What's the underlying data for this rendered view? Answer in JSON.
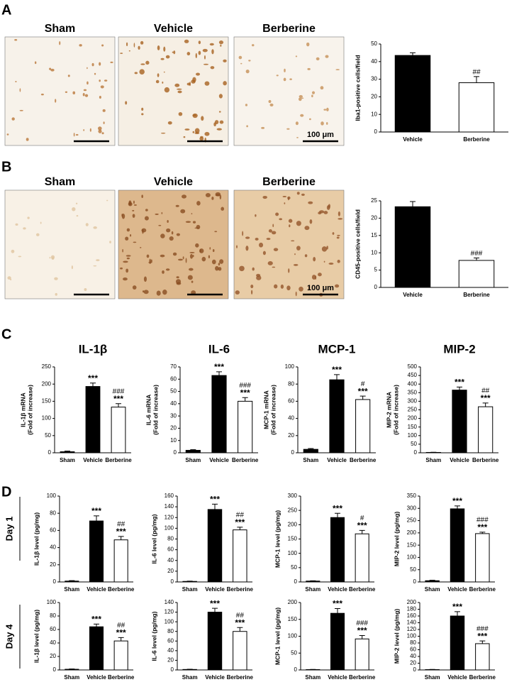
{
  "panel_labels": [
    "A",
    "B",
    "C",
    "D"
  ],
  "image_titles": [
    "Sham",
    "Vehicle",
    "Berberine"
  ],
  "scale_bar_label": "100 μm",
  "row_labels": [
    "Day 1",
    "Day 4"
  ],
  "chart_data": [
    {
      "type": "bar",
      "ylabel": "Iba1-positive cells/field",
      "categories": [
        "Vehicle",
        "Berberine"
      ],
      "values": [
        43.5,
        28
      ],
      "errors": [
        1.5,
        3.5
      ],
      "colors": [
        "#000000",
        "#ffffff"
      ],
      "markers": [
        null,
        [
          "##"
        ]
      ],
      "ylim": [
        0,
        50
      ],
      "yticks": [
        0,
        10,
        20,
        30,
        40,
        50
      ]
    },
    {
      "type": "bar",
      "ylabel": "CD45-positive cells/field",
      "categories": [
        "Vehicle",
        "Berberine"
      ],
      "values": [
        23.3,
        7.8
      ],
      "errors": [
        1.5,
        0.7
      ],
      "colors": [
        "#000000",
        "#ffffff"
      ],
      "markers": [
        null,
        [
          "###"
        ]
      ],
      "ylim": [
        0,
        25
      ],
      "yticks": [
        0,
        5,
        10,
        15,
        20,
        25
      ]
    },
    {
      "type": "bar",
      "title": "IL-1β",
      "ylabel": [
        "IL-1β mRNA",
        "(Fold of increase)"
      ],
      "categories": [
        "Sham",
        "Vehicle",
        "Berberine"
      ],
      "values": [
        3,
        193,
        133
      ],
      "errors": [
        2,
        10,
        10
      ],
      "colors": [
        "#000000",
        "#000000",
        "#ffffff"
      ],
      "markers": [
        null,
        [
          "***"
        ],
        [
          "###",
          "***"
        ]
      ],
      "ylim": [
        0,
        250
      ],
      "yticks": [
        0,
        50,
        100,
        150,
        200,
        250
      ]
    },
    {
      "type": "bar",
      "title": "IL-6",
      "ylabel": [
        "IL-6 mRNA",
        "(Fold of increase)"
      ],
      "categories": [
        "Sham",
        "Vehicle",
        "Berberine"
      ],
      "values": [
        2,
        63,
        42
      ],
      "errors": [
        0.5,
        3,
        3
      ],
      "colors": [
        "#000000",
        "#000000",
        "#ffffff"
      ],
      "markers": [
        null,
        [
          "***"
        ],
        [
          "###",
          "***"
        ]
      ],
      "ylim": [
        0,
        70
      ],
      "yticks": [
        0,
        10,
        20,
        30,
        40,
        50,
        60,
        70
      ]
    },
    {
      "type": "bar",
      "title": "MCP-1",
      "ylabel": [
        "MCP-1 mRNA",
        "(Fold of increase)"
      ],
      "categories": [
        "Sham",
        "Vehicle",
        "Berberine"
      ],
      "values": [
        4,
        85,
        62
      ],
      "errors": [
        1,
        6,
        4
      ],
      "colors": [
        "#000000",
        "#000000",
        "#ffffff"
      ],
      "markers": [
        null,
        [
          "***"
        ],
        [
          "#",
          "***"
        ]
      ],
      "ylim": [
        0,
        100
      ],
      "yticks": [
        0,
        20,
        40,
        60,
        80,
        100
      ]
    },
    {
      "type": "bar",
      "title": "MIP-2",
      "ylabel": [
        "MIP-2 mRNA",
        "(Fold of increase)"
      ],
      "categories": [
        "Sham",
        "Vehicle",
        "Berberine"
      ],
      "values": [
        2,
        365,
        268
      ],
      "errors": [
        1,
        18,
        22
      ],
      "colors": [
        "#000000",
        "#000000",
        "#ffffff"
      ],
      "markers": [
        null,
        [
          "***"
        ],
        [
          "##",
          "***"
        ]
      ],
      "ylim": [
        0,
        500
      ],
      "yticks": [
        0,
        50,
        100,
        150,
        200,
        250,
        300,
        350,
        400,
        450,
        500
      ]
    },
    {
      "type": "bar",
      "ylabel": "IL-1β level (pg/mg)",
      "categories": [
        "Sham",
        "Vehicle",
        "Berberine"
      ],
      "values": [
        1,
        71,
        49
      ],
      "errors": [
        0.5,
        6,
        4
      ],
      "colors": [
        "#000000",
        "#000000",
        "#ffffff"
      ],
      "markers": [
        null,
        [
          "***"
        ],
        [
          "##",
          "***"
        ]
      ],
      "ylim": [
        0,
        100
      ],
      "yticks": [
        0,
        20,
        40,
        60,
        80,
        100
      ]
    },
    {
      "type": "bar",
      "ylabel": "IL-6 level (pg/mg)",
      "categories": [
        "Sham",
        "Vehicle",
        "Berberine"
      ],
      "values": [
        1,
        135,
        97
      ],
      "errors": [
        0.5,
        10,
        5
      ],
      "colors": [
        "#000000",
        "#000000",
        "#ffffff"
      ],
      "markers": [
        null,
        [
          "***"
        ],
        [
          "##",
          "***"
        ]
      ],
      "ylim": [
        0,
        160
      ],
      "yticks": [
        0,
        20,
        40,
        60,
        80,
        100,
        120,
        140,
        160
      ]
    },
    {
      "type": "bar",
      "ylabel": "MCP-1 level (pg/mg)",
      "categories": [
        "Sham",
        "Vehicle",
        "Berberine"
      ],
      "values": [
        3,
        225,
        168
      ],
      "errors": [
        1,
        15,
        12
      ],
      "colors": [
        "#000000",
        "#000000",
        "#ffffff"
      ],
      "markers": [
        null,
        [
          "***"
        ],
        [
          "#",
          "***"
        ]
      ],
      "ylim": [
        0,
        300
      ],
      "yticks": [
        0,
        50,
        100,
        150,
        200,
        250,
        300
      ]
    },
    {
      "type": "bar",
      "ylabel": "MIP-2 level (pg/mg)",
      "categories": [
        "Sham",
        "Vehicle",
        "Berberine"
      ],
      "values": [
        5,
        298,
        197
      ],
      "errors": [
        2,
        12,
        6
      ],
      "colors": [
        "#000000",
        "#000000",
        "#ffffff"
      ],
      "markers": [
        null,
        [
          "***"
        ],
        [
          "###",
          "***"
        ]
      ],
      "ylim": [
        0,
        350
      ],
      "yticks": [
        0,
        50,
        100,
        150,
        200,
        250,
        300,
        350
      ]
    },
    {
      "type": "bar",
      "ylabel": "IL-1β level (pg/mg)",
      "categories": [
        "Sham",
        "Vehicle",
        "Berberine"
      ],
      "values": [
        1,
        64,
        43
      ],
      "errors": [
        0.5,
        4,
        5
      ],
      "colors": [
        "#000000",
        "#000000",
        "#ffffff"
      ],
      "markers": [
        null,
        [
          "***"
        ],
        [
          "##",
          "***"
        ]
      ],
      "ylim": [
        0,
        100
      ],
      "yticks": [
        0,
        20,
        40,
        60,
        80,
        100
      ]
    },
    {
      "type": "bar",
      "ylabel": "IL-6 level (pg/mg)",
      "categories": [
        "Sham",
        "Vehicle",
        "Berberine"
      ],
      "values": [
        1,
        120,
        80
      ],
      "errors": [
        0.5,
        8,
        8
      ],
      "colors": [
        "#000000",
        "#000000",
        "#ffffff"
      ],
      "markers": [
        null,
        [
          "***"
        ],
        [
          "##",
          "***"
        ]
      ],
      "ylim": [
        0,
        140
      ],
      "yticks": [
        0,
        20,
        40,
        60,
        80,
        100,
        120,
        140
      ]
    },
    {
      "type": "bar",
      "ylabel": "MCP-1 level (pg/mg)",
      "categories": [
        "Sham",
        "Vehicle",
        "Berberine"
      ],
      "values": [
        1,
        168,
        92
      ],
      "errors": [
        0.5,
        14,
        10
      ],
      "colors": [
        "#000000",
        "#000000",
        "#ffffff"
      ],
      "markers": [
        null,
        [
          "***"
        ],
        [
          "###",
          "***"
        ]
      ],
      "ylim": [
        0,
        200
      ],
      "yticks": [
        0,
        50,
        100,
        150,
        200
      ]
    },
    {
      "type": "bar",
      "ylabel": "MIP-2 level (pg/mg)",
      "categories": [
        "Sham",
        "Vehicle",
        "Berberine"
      ],
      "values": [
        1,
        160,
        78
      ],
      "errors": [
        0.5,
        13,
        8
      ],
      "colors": [
        "#000000",
        "#000000",
        "#ffffff"
      ],
      "markers": [
        null,
        [
          "***"
        ],
        [
          "###",
          "***"
        ]
      ],
      "ylim": [
        0,
        200
      ],
      "yticks": [
        0,
        20,
        40,
        60,
        80,
        100,
        120,
        140,
        160,
        180,
        200
      ]
    }
  ]
}
